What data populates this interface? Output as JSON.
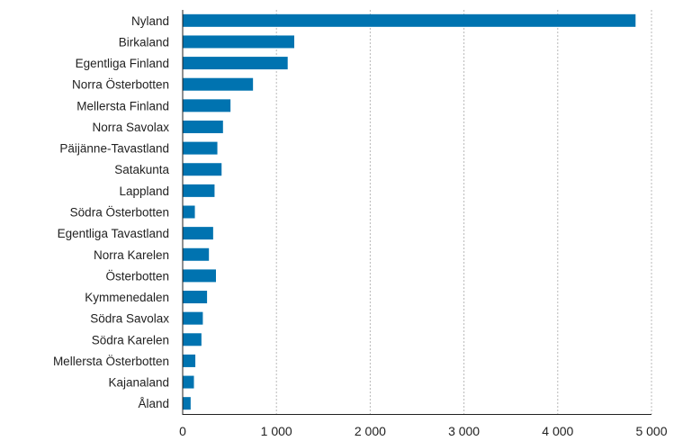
{
  "chart_data": {
    "type": "bar",
    "orientation": "horizontal",
    "categories": [
      "Nyland",
      "Birkaland",
      "Egentliga Finland",
      "Norra Österbotten",
      "Mellersta Finland",
      "Norra Savolax",
      "Päijänne-Tavastland",
      "Satakunta",
      "Lappland",
      "Södra Österbotten",
      "Egentliga Tavastland",
      "Norra Karelen",
      "Österbotten",
      "Kymmenedalen",
      "Södra Savolax",
      "Södra Karelen",
      "Mellersta Österbotten",
      "Kajanaland",
      "Åland"
    ],
    "values": [
      4830,
      1190,
      1120,
      750,
      510,
      430,
      370,
      415,
      340,
      130,
      325,
      280,
      355,
      260,
      215,
      200,
      135,
      120,
      85
    ],
    "xlim": [
      0,
      5000
    ],
    "xticks": [
      0,
      1000,
      2000,
      3000,
      4000,
      5000
    ],
    "xtick_labels": [
      "0",
      "1 000",
      "2 000",
      "3 000",
      "4 000",
      "5 000"
    ],
    "grid": "vertical-dotted",
    "legend": "none",
    "bar_color": "#0073b0"
  }
}
